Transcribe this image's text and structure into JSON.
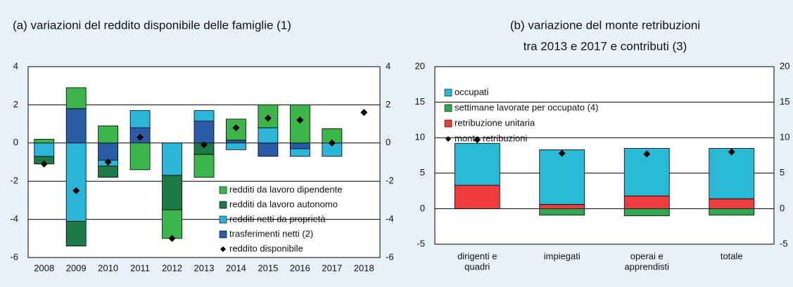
{
  "chart_data": [
    {
      "type": "stacked-bar",
      "title": "(a) variazioni del reddito disponibile delle famiglie (1)",
      "categories": [
        "2008",
        "2009",
        "2010",
        "2011",
        "2012",
        "2013",
        "2014",
        "2015",
        "2016",
        "2017",
        "2018"
      ],
      "series": [
        {
          "name": "redditi da lavoro dipendente",
          "color": "#3cb54b",
          "kind": "bar",
          "values": [
            0.2,
            1.1,
            0.9,
            -1.4,
            -1.5,
            -1.2,
            1.1,
            1.2,
            2.0,
            0.75,
            null
          ]
        },
        {
          "name": "redditi da lavoro autonomo",
          "color": "#1b7a46",
          "kind": "bar",
          "values": [
            -0.4,
            -1.3,
            -0.6,
            0,
            -1.8,
            -0.6,
            0,
            0,
            0,
            0,
            null
          ]
        },
        {
          "name": "redditi netti da proprietà",
          "color": "#2bb5d9",
          "kind": "bar",
          "values": [
            -0.7,
            -4.1,
            -0.3,
            0.9,
            -1.7,
            0.55,
            -0.35,
            0.8,
            -0.4,
            -0.7,
            null
          ]
        },
        {
          "name": "trasferimenti netti  (2)",
          "color": "#2a5ca8",
          "kind": "bar",
          "values": [
            0,
            1.8,
            -0.9,
            0.8,
            0,
            1.15,
            0.15,
            -0.7,
            -0.3,
            0,
            null
          ]
        },
        {
          "name": "reddito disponibile",
          "color": "#000000",
          "kind": "marker",
          "values": [
            -1.1,
            -2.5,
            -1.0,
            0.3,
            -5.0,
            -0.1,
            0.8,
            1.3,
            1.2,
            0.0,
            1.6
          ]
        }
      ],
      "ylim": [
        -6,
        4
      ],
      "yticks": [
        -6,
        -4,
        -2,
        0,
        2,
        4
      ],
      "y2lim": [
        -6,
        4
      ],
      "y2ticks": [
        -6,
        -4,
        -2,
        0,
        2,
        4
      ],
      "grid": true,
      "legend": "lower right"
    },
    {
      "type": "stacked-bar",
      "title": [
        "(b) variazione del monte retribuzioni",
        "tra 2013 e 2017 e contributi (3)"
      ],
      "categories": [
        [
          "dirigenti e",
          "quadri"
        ],
        [
          "impiegati"
        ],
        [
          "operai e",
          "apprendisti"
        ],
        [
          "totale"
        ]
      ],
      "series": [
        {
          "name": "occupati",
          "color": "#2bbad6",
          "kind": "bar",
          "values": [
            5.9,
            7.7,
            6.7,
            7.1
          ]
        },
        {
          "name": "settimane lavorate per occupato (4)",
          "color": "#2fa84f",
          "kind": "bar",
          "values": [
            0,
            -0.9,
            -1.0,
            -0.9
          ]
        },
        {
          "name": "retribuzione unitaria",
          "color": "#ee3b3b",
          "kind": "bar",
          "values": [
            3.3,
            0.6,
            1.8,
            1.4
          ]
        },
        {
          "name": "monte retribuzioni",
          "color": "#000000",
          "kind": "marker",
          "values": [
            9.7,
            7.8,
            7.7,
            8.0
          ]
        }
      ],
      "ylim": [
        -5,
        20
      ],
      "yticks": [
        -5,
        0,
        5,
        10,
        15,
        20
      ],
      "y2lim": [
        -5,
        20
      ],
      "y2ticks": [
        -5,
        0,
        5,
        10,
        15,
        20
      ],
      "grid": true,
      "legend": "upper left"
    }
  ]
}
